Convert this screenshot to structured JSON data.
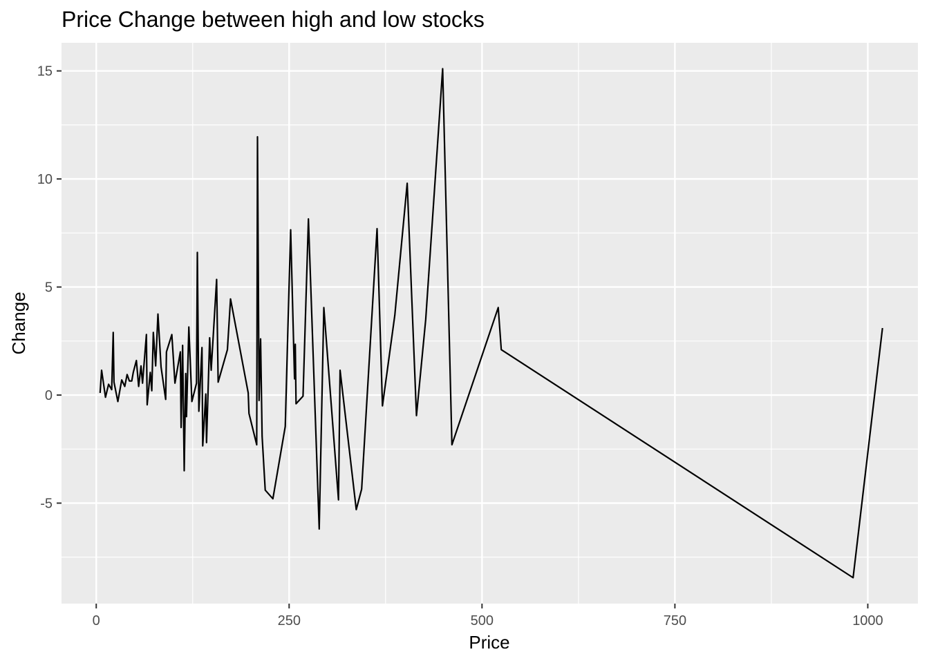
{
  "chart_data": {
    "type": "line",
    "title": "Price Change between high and low stocks",
    "xlabel": "Price",
    "ylabel": "Change",
    "xlim": [
      -45,
      1065
    ],
    "ylim": [
      -9.65,
      16.3
    ],
    "x_ticks": [
      0,
      250,
      500,
      750,
      1000
    ],
    "x_tick_labels": [
      "0",
      "250",
      "500",
      "750",
      "1000"
    ],
    "x_minor_ticks": [
      125,
      375,
      625,
      875
    ],
    "y_ticks": [
      -5,
      0,
      5,
      10,
      15
    ],
    "y_tick_labels": [
      "-5",
      "0",
      "5",
      "10",
      "15"
    ],
    "y_minor_ticks": [
      -7.5,
      -2.5,
      2.5,
      7.5,
      12.5
    ],
    "grid": true,
    "series": [
      {
        "x": [
          5,
          7,
          12,
          16,
          20,
          22,
          23,
          28,
          33,
          37,
          40,
          43,
          46,
          48,
          52,
          55,
          58,
          60,
          65,
          66,
          70,
          72,
          74,
          77,
          80,
          84,
          90,
          91,
          98,
          102,
          109,
          110,
          112,
          114,
          116,
          117,
          120,
          124,
          130,
          131,
          133,
          137,
          138,
          142,
          143,
          147,
          149,
          156,
          158,
          170,
          174,
          197,
          198,
          208,
          209,
          211,
          213,
          215,
          219,
          229,
          245,
          249,
          252,
          257,
          258,
          259,
          268,
          275,
          289,
          295,
          314,
          316,
          337,
          344,
          364,
          371,
          387,
          403,
          415,
          427,
          449,
          461,
          521,
          525,
          981,
          1019
        ],
        "y": [
          0.1,
          1.15,
          -0.1,
          0.5,
          0.25,
          2.9,
          0.6,
          -0.3,
          0.7,
          0.4,
          0.95,
          0.65,
          0.65,
          1.05,
          1.6,
          0.4,
          1.35,
          0.55,
          2.8,
          -0.45,
          1.05,
          0.2,
          2.9,
          1.35,
          3.75,
          1.3,
          -0.2,
          2.0,
          2.8,
          0.55,
          2.0,
          -1.5,
          2.3,
          -3.5,
          1.0,
          -1.0,
          3.15,
          -0.3,
          0.55,
          6.6,
          -0.75,
          2.2,
          -2.35,
          0.05,
          -2.2,
          2.65,
          1.15,
          5.35,
          0.6,
          2.1,
          4.45,
          0.1,
          -0.85,
          -2.3,
          11.95,
          -0.25,
          2.6,
          -1.9,
          -4.4,
          -4.8,
          -1.45,
          3.9,
          7.65,
          0.75,
          2.35,
          -0.4,
          -0.05,
          8.15,
          -6.2,
          4.05,
          -4.85,
          1.15,
          -5.3,
          -4.35,
          7.7,
          -0.5,
          3.7,
          9.8,
          -0.95,
          3.5,
          15.1,
          -2.3,
          4.05,
          2.1,
          -8.45,
          3.1
        ]
      }
    ]
  }
}
